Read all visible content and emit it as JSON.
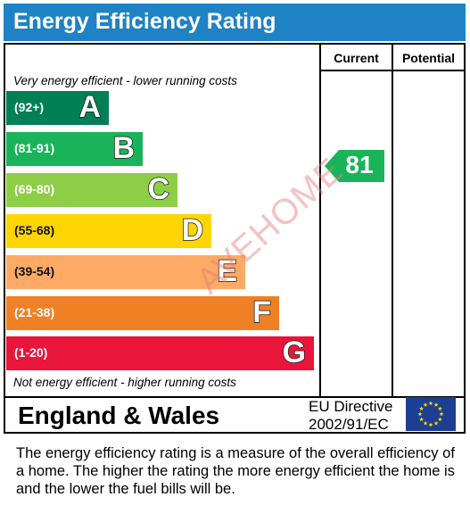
{
  "title": "Energy Efficiency Rating",
  "columns": {
    "current": "Current",
    "potential": "Potential"
  },
  "notes": {
    "top": "Very energy efficient - lower running costs",
    "bottom": "Not energy efficient - higher running costs"
  },
  "region": "England & Wales",
  "directive": {
    "line1": "EU Directive",
    "line2": "2002/91/EC"
  },
  "watermark": "AVEHOME",
  "description": "The energy efficiency rating is a measure of the overall efficiency of a home.  The higher the rating the more energy efficient the home is and the lower the fuel bills will be.",
  "flag_icon": "eu-flag-icon",
  "chart_data": {
    "type": "bar",
    "categories": [
      "A",
      "B",
      "C",
      "D",
      "E",
      "F",
      "G"
    ],
    "ranges": [
      "(92+)",
      "(81-91)",
      "(69-80)",
      "(55-68)",
      "(39-54)",
      "(21-38)",
      "(1-20)"
    ],
    "colors": [
      "#008054",
      "#19b459",
      "#8dce46",
      "#ffd500",
      "#fcaa65",
      "#ef8023",
      "#e9153b"
    ],
    "current": {
      "value": 81,
      "band": "B",
      "color": "#19b459"
    },
    "potential": null
  }
}
